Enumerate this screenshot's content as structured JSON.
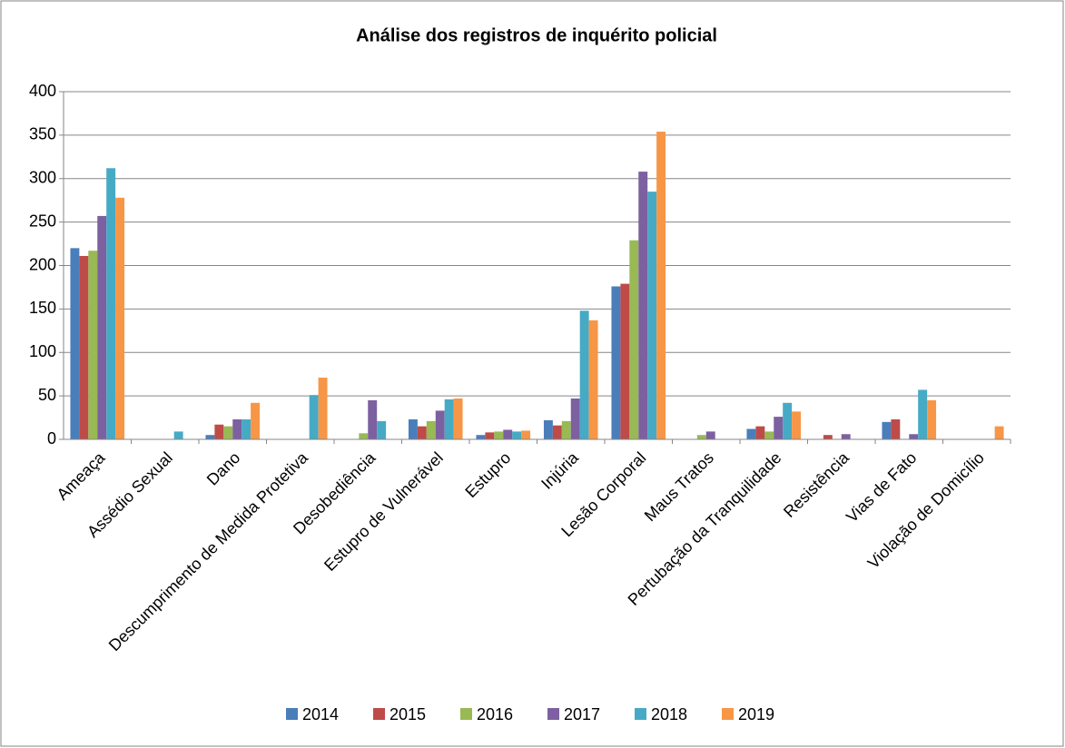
{
  "chart_data": {
    "type": "bar",
    "title": "Análise dos registros de inquérito policial",
    "categories": [
      "Ameaça",
      "Assédio Sexual",
      "Dano",
      "Descumprimento de Medida Protetiva",
      "Desobediência",
      "Estupro de Vulnerável",
      "Estupro",
      "Injúria",
      "Lesão Corporal",
      "Maus Tratos",
      "Pertubação da Tranquilidade",
      "Resistência",
      "Vias de Fato",
      "Violação de Domicílio"
    ],
    "series": [
      {
        "name": "2014",
        "color": "#4a7ebb",
        "values": [
          220,
          0,
          5,
          0,
          0,
          23,
          5,
          22,
          176,
          0,
          12,
          0,
          20,
          0
        ]
      },
      {
        "name": "2015",
        "color": "#be4b48",
        "values": [
          211,
          0,
          17,
          0,
          0,
          15,
          8,
          16,
          179,
          0,
          15,
          5,
          23,
          0
        ]
      },
      {
        "name": "2016",
        "color": "#98b954",
        "values": [
          217,
          0,
          15,
          0,
          7,
          21,
          9,
          21,
          229,
          5,
          9,
          0,
          0,
          0
        ]
      },
      {
        "name": "2017",
        "color": "#7d60a0",
        "values": [
          257,
          0,
          23,
          0,
          45,
          33,
          11,
          47,
          308,
          9,
          26,
          6,
          6,
          0
        ]
      },
      {
        "name": "2018",
        "color": "#46aac5",
        "values": [
          312,
          9,
          23,
          51,
          21,
          46,
          9,
          148,
          285,
          0,
          42,
          0,
          57,
          0
        ]
      },
      {
        "name": "2019",
        "color": "#f79646",
        "values": [
          278,
          0,
          42,
          71,
          0,
          47,
          10,
          137,
          354,
          0,
          32,
          0,
          45,
          15
        ]
      }
    ],
    "ylim": [
      0,
      400
    ],
    "yticks": [
      0,
      50,
      100,
      150,
      200,
      250,
      300,
      350,
      400
    ],
    "grid": true,
    "legend": "bottom"
  }
}
